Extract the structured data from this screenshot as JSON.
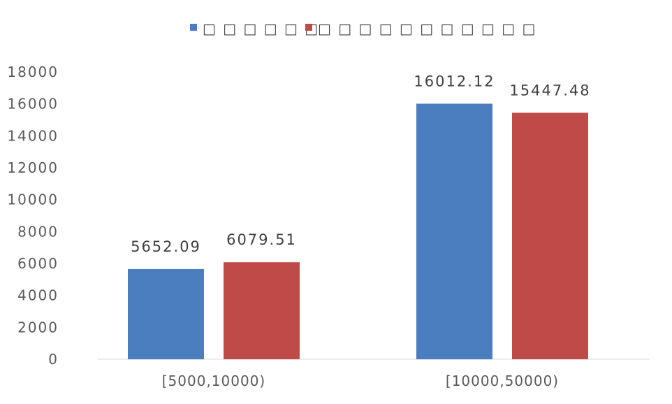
{
  "chart_data": {
    "type": "bar",
    "categories": [
      "[5000,10000)",
      "[10000,50000)"
    ],
    "series": [
      {
        "name": "□ □ □ □ □ □",
        "color": "#4a7ebe",
        "values": [
          5652.09,
          16012.12
        ]
      },
      {
        "name": "□ □ □ □ □ □ □ □ □ □ □",
        "color": "#be4b48",
        "values": [
          6079.51,
          15447.48
        ]
      }
    ],
    "data_labels": [
      [
        "5652.09",
        "16012.12"
      ],
      [
        "6079.51",
        "15447.48"
      ]
    ],
    "yticks": [
      "0",
      "2000",
      "4000",
      "6000",
      "8000",
      "10000",
      "12000",
      "14000",
      "16000",
      "18000"
    ],
    "ylim": [
      0,
      18000
    ],
    "legend_position": "top",
    "grid": false
  }
}
